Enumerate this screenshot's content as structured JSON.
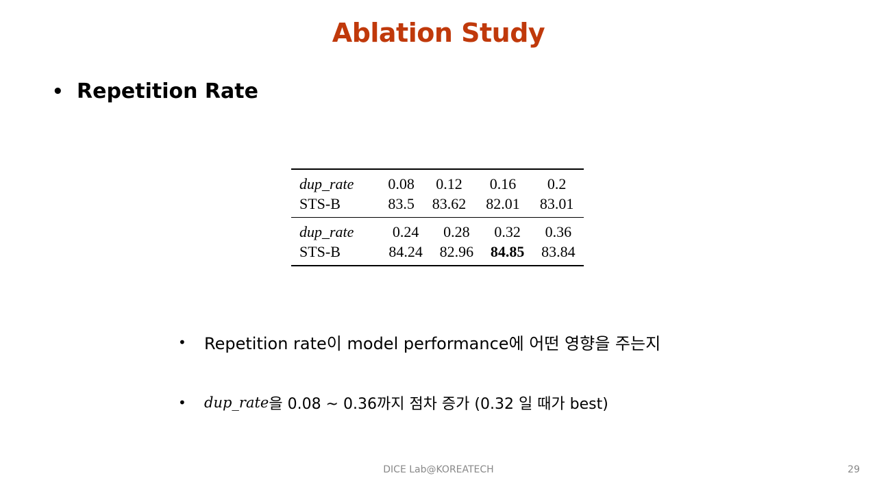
{
  "slide": {
    "title": "Ablation Study",
    "section_bullet": "Repetition Rate",
    "bullets": [
      "Repetition rate이 model performance에 어떤 영향을 주는지"
    ],
    "bullet2": {
      "var": "dup_rate",
      "text": "을 0.08 ~ 0.36까지 점차 증가 (0.32 일 때가 best)"
    },
    "footer": "DICE  Lab@KOREATECH",
    "page_number": "29"
  },
  "table": {
    "groups": [
      {
        "rows": [
          {
            "label": "dup_rate",
            "italic": true,
            "cells": [
              "0.08",
              "0.12",
              "0.16",
              "0.2"
            ]
          },
          {
            "label": "STS-B",
            "italic": false,
            "cells": [
              "83.5",
              "83.62",
              "82.01",
              "83.01"
            ]
          }
        ]
      },
      {
        "rows": [
          {
            "label": "dup_rate",
            "italic": true,
            "cells": [
              "0.24",
              "0.28",
              "0.32",
              "0.36"
            ]
          },
          {
            "label": "STS-B",
            "italic": false,
            "cells": [
              "84.24",
              "82.96",
              "84.85",
              "83.84"
            ]
          }
        ]
      }
    ],
    "bold_value": "84.85"
  }
}
